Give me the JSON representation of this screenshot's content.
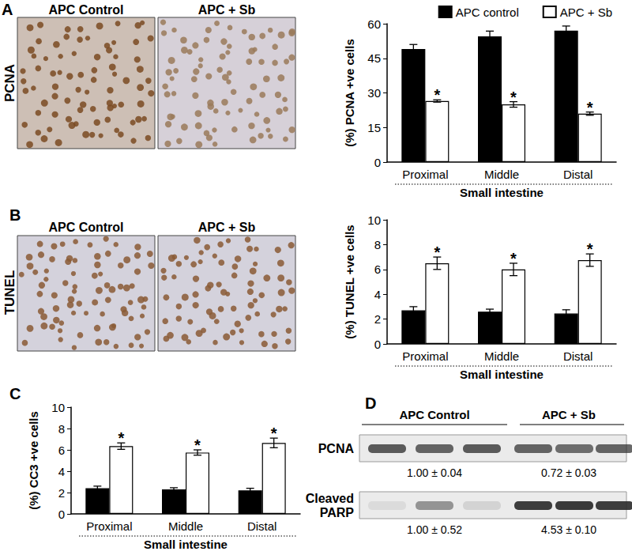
{
  "chart_data": [
    {
      "type": "bar",
      "categories": [
        "Proximal",
        "Middle",
        "Distal"
      ],
      "x_label": "Small intestine",
      "y_label": "(%) PCNA +ve cells",
      "ylim": [
        0,
        60
      ],
      "yticks": [
        0,
        15,
        30,
        45,
        60
      ],
      "grid": false,
      "legend": "top",
      "series": [
        {
          "name": "APC control",
          "color": "#000000",
          "values": [
            49,
            54.5,
            57
          ],
          "errors": [
            2,
            2.3,
            2
          ]
        },
        {
          "name": "APC + Sb",
          "color": "#ffffff",
          "values": [
            26.5,
            25,
            21
          ],
          "errors": [
            0.5,
            1.2,
            0.7
          ],
          "annotations": [
            "*",
            "*",
            "*"
          ]
        }
      ]
    },
    {
      "type": "bar",
      "categories": [
        "Proximal",
        "Middle",
        "Distal"
      ],
      "x_label": "Small intestine",
      "y_label": "(%) TUNEL +ve cells",
      "ylim": [
        0,
        10
      ],
      "yticks": [
        0,
        2,
        4,
        6,
        8,
        10
      ],
      "grid": false,
      "legend": false,
      "series": [
        {
          "name": "APC control",
          "color": "#000000",
          "values": [
            2.7,
            2.6,
            2.45
          ],
          "errors": [
            0.3,
            0.2,
            0.3
          ]
        },
        {
          "name": "APC + Sb",
          "color": "#ffffff",
          "values": [
            6.5,
            6.0,
            6.75
          ],
          "errors": [
            0.5,
            0.5,
            0.5
          ],
          "annotations": [
            "*",
            "*",
            "*"
          ]
        }
      ]
    },
    {
      "type": "bar",
      "categories": [
        "Proximal",
        "Middle",
        "Distal"
      ],
      "x_label": "Small intestine",
      "y_label": "(%) CC3 +ve cells",
      "ylim": [
        0,
        10
      ],
      "yticks": [
        0,
        2,
        4,
        6,
        8,
        10
      ],
      "grid": false,
      "legend": false,
      "series": [
        {
          "name": "APC control",
          "color": "#000000",
          "values": [
            2.4,
            2.3,
            2.2
          ],
          "errors": [
            0.2,
            0.15,
            0.2
          ]
        },
        {
          "name": "APC + Sb",
          "color": "#ffffff",
          "values": [
            6.35,
            5.75,
            6.65
          ],
          "errors": [
            0.3,
            0.25,
            0.45
          ],
          "annotations": [
            "*",
            "*",
            "*"
          ]
        }
      ]
    }
  ],
  "figure": {
    "panels": [
      {
        "letter": "A",
        "stain": "PCNA",
        "images": [
          "APC Control",
          "APC + Sb"
        ]
      },
      {
        "letter": "B",
        "stain": "TUNEL",
        "images": [
          "APC Control",
          "APC + Sb"
        ]
      },
      {
        "letter": "C"
      },
      {
        "letter": "D",
        "blot": {
          "groups": [
            "APC Control",
            "APC + Sb"
          ],
          "rows": [
            {
              "label": "PCNA",
              "values": [
                "1.00 ± 0.04",
                "0.72 ± 0.03"
              ]
            },
            {
              "label": "Cleaved PARP",
              "values": [
                "1.00 ± 0.52",
                "4.53 ± 0.10"
              ]
            }
          ]
        }
      }
    ]
  }
}
